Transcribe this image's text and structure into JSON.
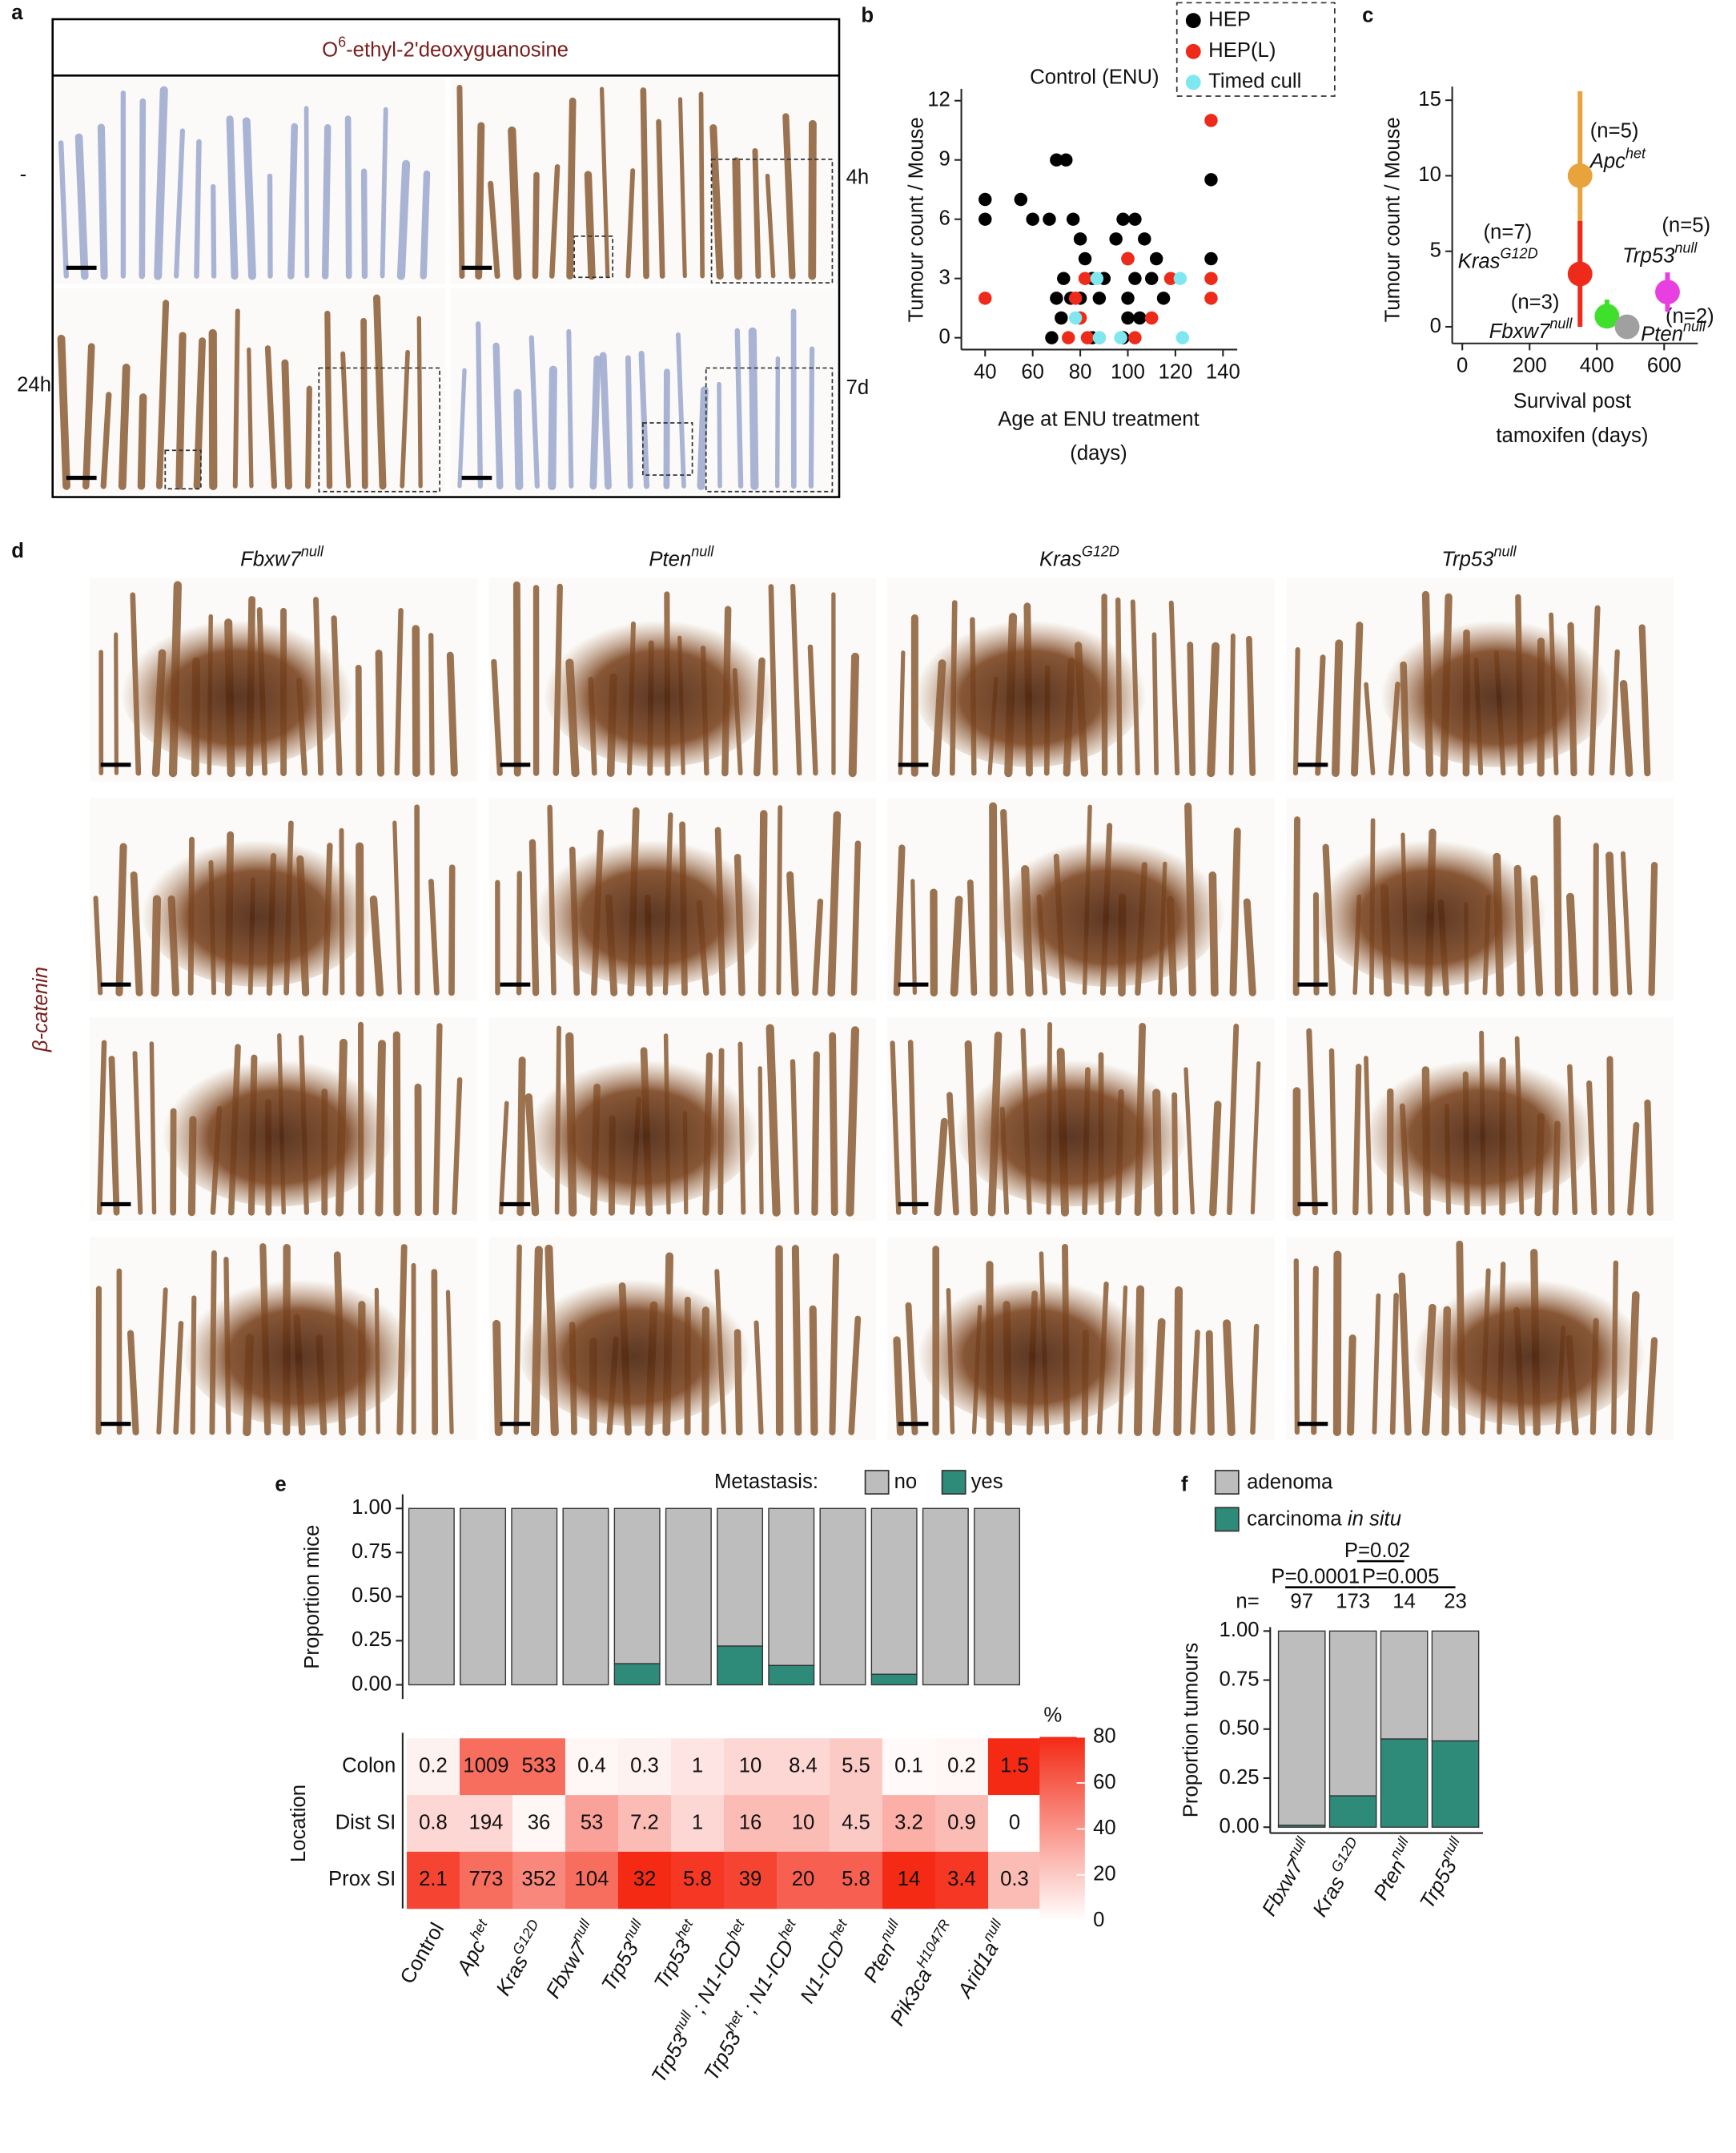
{
  "panel_labels": [
    "a",
    "b",
    "c",
    "d",
    "e",
    "f"
  ],
  "panel_a": {
    "title": [
      "O",
      "6",
      "-ethyl-2'deoxyguanosine"
    ],
    "left_labels": [
      "-",
      "24h"
    ],
    "right_labels": [
      "4h",
      "7d"
    ]
  },
  "panel_d": {
    "columns": [
      [
        "Fbxw7",
        "null"
      ],
      [
        "Pten",
        "null"
      ],
      [
        "Kras",
        "G12D"
      ],
      [
        "Trp53",
        "null"
      ]
    ],
    "row_label": "β-catenin"
  },
  "chart_data": [
    {
      "type": "scatter",
      "title": "Control (ENU)",
      "xlabel": [
        "Age at ENU treatment",
        "(days)"
      ],
      "ylabel": "Tumour count / Mouse",
      "xlim": [
        30,
        146
      ],
      "ylim": [
        -0.6,
        12.6
      ],
      "xticks": [
        40,
        60,
        80,
        100,
        120,
        140
      ],
      "yticks": [
        0,
        3,
        6,
        9,
        12
      ],
      "legend": "top-right",
      "series": [
        {
          "name": "HEP",
          "color": "#000000",
          "x": [
            40,
            40,
            55,
            60,
            70,
            74,
            67,
            73,
            77,
            80,
            82,
            85,
            70,
            72,
            68,
            76,
            80,
            88,
            90,
            95,
            98,
            103,
            100,
            103,
            100,
            105,
            98,
            107,
            110,
            112,
            115,
            135,
            135,
            100,
            85
          ],
          "values": [
            7,
            6,
            7,
            6,
            9,
            9,
            6,
            3,
            6,
            5,
            4,
            3,
            2,
            1,
            0,
            2,
            2,
            2,
            3,
            5,
            6,
            6,
            4,
            3,
            1,
            1,
            0,
            5,
            3,
            4,
            2,
            8,
            4,
            2,
            0
          ]
        },
        {
          "name": "HEP(L)",
          "color": "#ee2a1a",
          "x": [
            40,
            75,
            78,
            82,
            83,
            88,
            100,
            103,
            110,
            118,
            135,
            135,
            135,
            80
          ],
          "values": [
            2,
            0,
            2,
            3,
            0,
            0,
            4,
            0,
            1,
            3,
            11,
            3,
            2,
            1
          ]
        },
        {
          "name": "Timed cull",
          "color": "#7fe7ef",
          "x": [
            78,
            87,
            88,
            97,
            122,
            123
          ],
          "values": [
            1,
            3,
            0,
            0,
            3,
            0
          ]
        }
      ]
    },
    {
      "type": "errorbar",
      "xlabel": [
        "Survival post",
        "tamoxifen (days)"
      ],
      "ylabel": "Tumour count / Mouse",
      "xlim": [
        -30,
        700
      ],
      "ylim": [
        -1.1,
        15.9
      ],
      "xticks": [
        0,
        200,
        400,
        600
      ],
      "yticks": [
        0,
        5,
        10,
        15
      ],
      "series": [
        {
          "name": [
            "Apc",
            "het"
          ],
          "n": "(n=5)",
          "color": "#e8a33d",
          "x": [
            350
          ],
          "values": [
            10
          ],
          "low": [
            4
          ],
          "high": [
            15.6
          ]
        },
        {
          "name": [
            "Kras",
            "G12D"
          ],
          "n": "(n=7)",
          "color": "#ee2a1a",
          "x": [
            350
          ],
          "values": [
            3.5
          ],
          "low": [
            0
          ],
          "high": [
            7
          ]
        },
        {
          "name": [
            "Fbxw7",
            "null"
          ],
          "n": "(n=3)",
          "color": "#3ee02b",
          "x": [
            430
          ],
          "values": [
            0.7
          ],
          "low": [
            0
          ],
          "high": [
            1.8
          ]
        },
        {
          "name": [
            "Pten",
            "null"
          ],
          "n": "(n=2)",
          "color": "#a0a0a0",
          "x": [
            490
          ],
          "values": [
            0
          ],
          "low": [
            0
          ],
          "high": [
            0.3
          ]
        },
        {
          "name": [
            "Trp53",
            "null"
          ],
          "n": "(n=5)",
          "color": "#e840e0",
          "x": [
            610
          ],
          "values": [
            2.3
          ],
          "low": [
            1
          ],
          "high": [
            3.6
          ]
        }
      ]
    },
    {
      "type": "stacked_bar",
      "ylabel": "Proportion mice",
      "legend_title": "Metastasis:",
      "categories": [
        [
          "Control"
        ],
        [
          "Apc",
          "het"
        ],
        [
          "Kras",
          "G12D"
        ],
        [
          "Fbxw7",
          "null"
        ],
        [
          "Trp53",
          "null"
        ],
        [
          "Trp53",
          "het"
        ],
        [
          "Trp53",
          "null",
          " ; N1-ICD",
          "het"
        ],
        [
          "Trp53",
          "het",
          " ; N1-ICD",
          "het"
        ],
        [
          "N1-ICD",
          "het"
        ],
        [
          "Pten",
          "null"
        ],
        [
          "Pik3ca",
          "H1047R"
        ],
        [
          "Arid1a",
          "null"
        ]
      ],
      "ylim": [
        -0.08,
        1.08
      ],
      "yticks": [
        {
          "value": 0,
          "label": "0.00"
        },
        {
          "value": 0.25,
          "label": "0.25"
        },
        {
          "value": 0.5,
          "label": "0.50"
        },
        {
          "value": 0.75,
          "label": "0.75"
        },
        {
          "value": 1,
          "label": "1.00"
        }
      ],
      "series": [
        {
          "name": "no",
          "color": "#bdbdbd",
          "values": [
            1,
            1,
            1,
            1,
            0.88,
            1,
            0.78,
            0.89,
            1,
            0.94,
            1,
            1
          ]
        },
        {
          "name": "yes",
          "color": "#2e8b7a",
          "values": [
            0,
            0,
            0,
            0,
            0.12,
            0,
            0.22,
            0.11,
            0,
            0.06,
            0,
            0
          ]
        }
      ]
    },
    {
      "type": "heatmap",
      "ylabel": "Location",
      "rows": [
        "Colon",
        "Dist SI",
        "Prox SI"
      ],
      "values": [
        [
          0.2,
          1009,
          533,
          0.4,
          0.3,
          1,
          10,
          8.4,
          5.5,
          0.1,
          0.2,
          1.5
        ],
        [
          0.8,
          194,
          36,
          53,
          7.2,
          1,
          16,
          10,
          4.5,
          3.2,
          0.9,
          0
        ],
        [
          2.1,
          773,
          352,
          104,
          32,
          5.8,
          39,
          20,
          5.8,
          14,
          3.4,
          0.3
        ]
      ],
      "percent": [
        [
          5,
          55,
          55,
          3,
          5,
          10,
          15,
          15,
          20,
          2,
          3,
          80
        ],
        [
          15,
          15,
          3,
          35,
          25,
          15,
          25,
          25,
          20,
          30,
          25,
          0
        ],
        [
          70,
          55,
          45,
          55,
          80,
          75,
          70,
          60,
          60,
          80,
          75,
          25
        ]
      ],
      "colorbar_title": "%",
      "clim": [
        0,
        80
      ],
      "cticks": [
        0,
        20,
        40,
        60,
        80
      ],
      "colors": [
        "#ffffff",
        "#f42a15"
      ]
    },
    {
      "type": "stacked_bar",
      "ylabel": "Proportion tumours",
      "categories": [
        [
          "Fbxw7",
          "null"
        ],
        [
          "Kras",
          " G12D"
        ],
        [
          "Pten",
          "null"
        ],
        [
          "Trp53",
          "null"
        ]
      ],
      "n_label": "n=",
      "n": [
        97,
        173,
        14,
        23
      ],
      "annotations": [
        "P=0.0001",
        "P=0.02",
        "P=0.005"
      ],
      "ylim": [
        -0.03,
        1.02
      ],
      "yticks": [
        {
          "value": 0,
          "label": "0.00"
        },
        {
          "value": 0.25,
          "label": "0.25"
        },
        {
          "value": 0.5,
          "label": "0.50"
        },
        {
          "value": 0.75,
          "label": "0.75"
        },
        {
          "value": 1,
          "label": "1.00"
        }
      ],
      "series": [
        {
          "name": [
            "adenoma"
          ],
          "color": "#bdbdbd",
          "values": [
            0.99,
            0.84,
            0.55,
            0.56
          ]
        },
        {
          "name": [
            "carcinoma ",
            "in situ"
          ],
          "color": "#2e8b7a",
          "values": [
            0.01,
            0.16,
            0.45,
            0.44
          ]
        }
      ]
    }
  ]
}
